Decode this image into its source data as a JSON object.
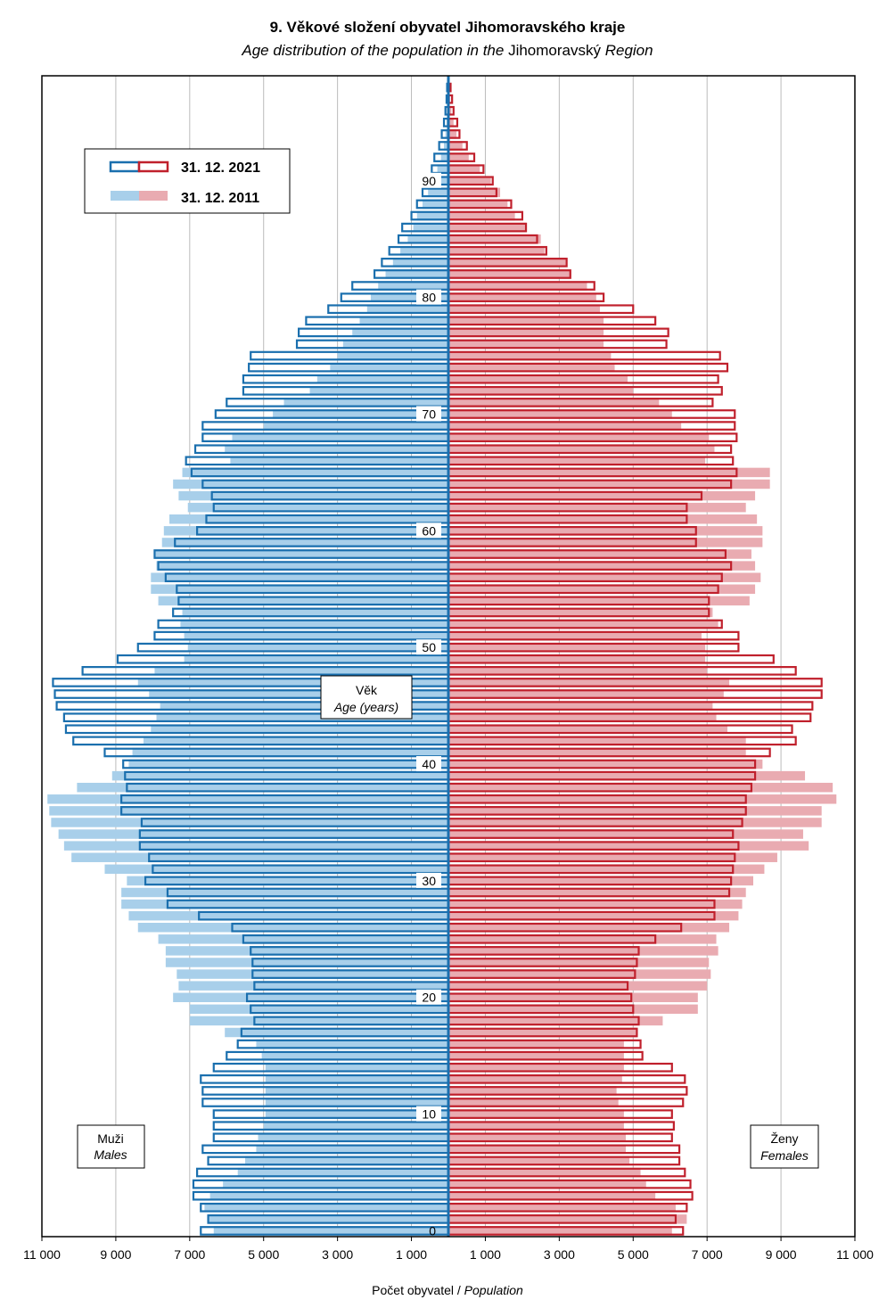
{
  "title": "9. Věkové složení obyvatel Jihomoravského kraje",
  "subtitle_parts": [
    "Age distribution of the population in the",
    "Jihomoravský",
    "Region"
  ],
  "legend": {
    "series_2021": "31. 12. 2021",
    "series_2011": "31. 12. 2011"
  },
  "center_label": {
    "cz": "Věk",
    "en": "Age (years)"
  },
  "males_label": {
    "cz": "Muži",
    "en": "Males"
  },
  "females_label": {
    "cz": "Ženy",
    "en": "Females"
  },
  "x_axis_label": {
    "cz": "Počet obyvatel",
    "sep": " / ",
    "en": "Population"
  },
  "colors": {
    "male_2021": "#1a6fae",
    "female_2021": "#c0202c",
    "male_2011": "#a8cfea",
    "female_2011": "#e9abb1"
  },
  "chart_data": {
    "type": "bar",
    "orientation": "horizontal population pyramid",
    "x_ticks": [
      "11 000",
      "9 000",
      "7 000",
      "5 000",
      "3 000",
      "1 000",
      "1 000",
      "3 000",
      "5 000",
      "7 000",
      "9 000",
      "11 000"
    ],
    "x_tick_values": [
      -11000,
      -9000,
      -7000,
      -5000,
      -3000,
      -1000,
      1000,
      3000,
      5000,
      7000,
      9000,
      11000
    ],
    "xlim": [
      -11000,
      11000
    ],
    "y_ticks": [
      0,
      10,
      20,
      30,
      40,
      50,
      60,
      70,
      80,
      90
    ],
    "ylim": [
      0,
      99
    ],
    "grid": "vertical",
    "ages": [
      0,
      1,
      2,
      3,
      4,
      5,
      6,
      7,
      8,
      9,
      10,
      11,
      12,
      13,
      14,
      15,
      16,
      17,
      18,
      19,
      20,
      21,
      22,
      23,
      24,
      25,
      26,
      27,
      28,
      29,
      30,
      31,
      32,
      33,
      34,
      35,
      36,
      37,
      38,
      39,
      40,
      41,
      42,
      43,
      44,
      45,
      46,
      47,
      48,
      49,
      50,
      51,
      52,
      53,
      54,
      55,
      56,
      57,
      58,
      59,
      60,
      61,
      62,
      63,
      64,
      65,
      66,
      67,
      68,
      69,
      70,
      71,
      72,
      73,
      74,
      75,
      76,
      77,
      78,
      79,
      80,
      81,
      82,
      83,
      84,
      85,
      86,
      87,
      88,
      89,
      90,
      91,
      92,
      93,
      94,
      95,
      96,
      97,
      98
    ],
    "series": [
      {
        "name": "31. 12. 2021",
        "sex": "males",
        "values": [
          6700,
          6500,
          6700,
          6900,
          6900,
          6800,
          6500,
          6650,
          6350,
          6350,
          6350,
          6650,
          6650,
          6700,
          6350,
          6000,
          5700,
          5600,
          5250,
          5350,
          5450,
          5250,
          5300,
          5300,
          5350,
          5550,
          5850,
          6750,
          7600,
          7600,
          8200,
          8000,
          8100,
          8350,
          8350,
          8300,
          8850,
          8850,
          8700,
          8750,
          8800,
          9300,
          10150,
          10350,
          10400,
          10600,
          10650,
          10700,
          9900,
          8950,
          8400,
          7950,
          7850,
          7450,
          7300,
          7350,
          7650,
          7850,
          7950,
          7400,
          6800,
          6550,
          6350,
          6400,
          6650,
          6950,
          7100,
          6850,
          6650,
          6650,
          6300,
          6000,
          5550,
          5550,
          5400,
          5350,
          4100,
          4050,
          3850,
          3250,
          2900,
          2600,
          2000,
          1800,
          1600,
          1350,
          1250,
          1000,
          850,
          700,
          600,
          450,
          380,
          250,
          180,
          120,
          80,
          50,
          35
        ],
        "stroke": "#1a6fae",
        "style": "outline"
      },
      {
        "name": "31. 12. 2021",
        "sex": "females",
        "values": [
          6350,
          6150,
          6450,
          6600,
          6550,
          6400,
          6250,
          6250,
          6050,
          6100,
          6050,
          6350,
          6450,
          6400,
          6050,
          5250,
          5200,
          5100,
          5150,
          5000,
          4950,
          4850,
          5050,
          5100,
          5150,
          5600,
          6300,
          7200,
          7200,
          7600,
          7650,
          7700,
          7750,
          7850,
          7700,
          7950,
          8050,
          8050,
          8200,
          8300,
          8300,
          8700,
          9400,
          9300,
          9800,
          9850,
          10100,
          10100,
          9400,
          8800,
          7850,
          7850,
          7400,
          7050,
          7050,
          7300,
          7400,
          7650,
          7500,
          6700,
          6700,
          6450,
          6450,
          6850,
          7650,
          7800,
          7700,
          7650,
          7800,
          7750,
          7750,
          7150,
          7400,
          7300,
          7550,
          7350,
          5900,
          5950,
          5600,
          5000,
          4200,
          3950,
          3300,
          3200,
          2650,
          2400,
          2100,
          2000,
          1700,
          1300,
          1200,
          950,
          700,
          500,
          300,
          240,
          140,
          100,
          60
        ],
        "stroke": "#c0202c",
        "style": "outline"
      },
      {
        "name": "31. 12. 2011",
        "sex": "males",
        "values": [
          6350,
          6500,
          6600,
          6450,
          6100,
          5700,
          5500,
          5200,
          5150,
          5000,
          4950,
          4950,
          4950,
          4950,
          4950,
          5050,
          5200,
          6050,
          7000,
          7000,
          7450,
          7300,
          7350,
          7650,
          7650,
          7850,
          8400,
          8650,
          8850,
          8850,
          8700,
          9300,
          10200,
          10400,
          10550,
          10750,
          10800,
          10850,
          10050,
          9100,
          8650,
          8550,
          8250,
          8050,
          7900,
          7800,
          8100,
          8400,
          7950,
          7150,
          7050,
          7150,
          7250,
          7200,
          7850,
          8050,
          8050,
          7900,
          7950,
          7750,
          7700,
          7550,
          7050,
          7300,
          7450,
          7200,
          5900,
          6050,
          5850,
          5000,
          4750,
          4450,
          3750,
          3550,
          3200,
          3000,
          2850,
          2600,
          2400,
          2200,
          2100,
          1900,
          1700,
          1500,
          1300,
          1100,
          950,
          850,
          700,
          550,
          400,
          300,
          200,
          120,
          80,
          50,
          30,
          20,
          10
        ],
        "fill": "#a8cfea",
        "style": "filled"
      },
      {
        "name": "31. 12. 2011",
        "sex": "females",
        "values": [
          6050,
          6450,
          6150,
          5600,
          5350,
          5200,
          4900,
          4800,
          4800,
          4750,
          4750,
          4600,
          4550,
          4700,
          4750,
          4750,
          4750,
          5100,
          5800,
          6750,
          6750,
          7000,
          7100,
          7050,
          7300,
          7250,
          7600,
          7850,
          7950,
          8050,
          8250,
          8550,
          8900,
          9750,
          9600,
          10100,
          10100,
          10500,
          10400,
          9650,
          8500,
          8050,
          8050,
          7550,
          7250,
          7150,
          7450,
          7600,
          7000,
          6950,
          6950,
          6850,
          7300,
          7150,
          8150,
          8300,
          8450,
          8300,
          8200,
          8500,
          8500,
          8350,
          8050,
          8300,
          8700,
          8700,
          6950,
          7200,
          7050,
          6300,
          6050,
          5700,
          5000,
          4850,
          4500,
          4400,
          4200,
          4200,
          4200,
          4100,
          4000,
          3750,
          3300,
          3200,
          2600,
          2500,
          2100,
          1800,
          1600,
          1400,
          1150,
          850,
          550,
          380,
          220,
          140,
          80,
          50,
          30
        ],
        "fill": "#e9abb1",
        "style": "filled"
      }
    ]
  }
}
